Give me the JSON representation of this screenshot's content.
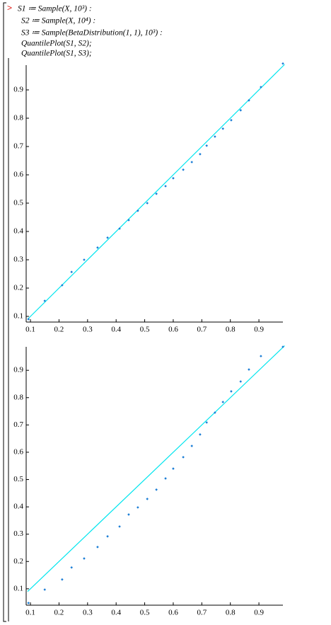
{
  "code": [
    "S1 ≔ Sample(X, 10³) :",
    "S2 ≔ Sample(X, 10⁴) :",
    "S3 ≔ Sample(BetaDistribution(1, 1), 10³) :",
    "QuantilePlot(S1, S2);",
    "QuantilePlot(S1, S3);"
  ],
  "prompt": ">",
  "chart_data": [
    {
      "type": "scatter",
      "xlim": [
        0.085,
        0.984
      ],
      "ylim": [
        0.08,
        0.9875
      ],
      "xticks": [
        0.1,
        0.2,
        0.3,
        0.4,
        0.5,
        0.6,
        0.7,
        0.8,
        0.9
      ],
      "yticks": [
        0.1,
        0.2,
        0.3,
        0.4,
        0.5,
        0.6,
        0.7,
        0.8,
        0.9
      ],
      "series": [
        {
          "mode": "line",
          "color": "#00e5ee",
          "x": [
            0.09,
            0.99
          ],
          "values": [
            0.09,
            0.99
          ]
        },
        {
          "mode": "points",
          "color": "#1c7ed6",
          "x": [
            0.093,
            0.15,
            0.211,
            0.244,
            0.288,
            0.335,
            0.37,
            0.412,
            0.444,
            0.476,
            0.509,
            0.541,
            0.573,
            0.6,
            0.635,
            0.665,
            0.694,
            0.717,
            0.746,
            0.774,
            0.803,
            0.836,
            0.865,
            0.907,
            0.984
          ],
          "values": [
            0.09,
            0.155,
            0.21,
            0.257,
            0.3,
            0.343,
            0.378,
            0.41,
            0.44,
            0.473,
            0.5,
            0.533,
            0.56,
            0.588,
            0.618,
            0.645,
            0.673,
            0.703,
            0.735,
            0.763,
            0.793,
            0.828,
            0.863,
            0.91,
            0.993
          ]
        }
      ]
    },
    {
      "type": "scatter",
      "xlim": [
        0.085,
        0.984
      ],
      "ylim": [
        0.04,
        0.986
      ],
      "xticks": [
        0.1,
        0.2,
        0.3,
        0.4,
        0.5,
        0.6,
        0.7,
        0.8,
        0.9
      ],
      "yticks": [
        0.1,
        0.2,
        0.3,
        0.4,
        0.5,
        0.6,
        0.7,
        0.8,
        0.9
      ],
      "series": [
        {
          "mode": "line",
          "color": "#00e5ee",
          "x": [
            0.09,
            0.99
          ],
          "values": [
            0.09,
            0.99
          ]
        },
        {
          "mode": "points",
          "color": "#1c7ed6",
          "x": [
            0.093,
            0.15,
            0.211,
            0.244,
            0.288,
            0.335,
            0.37,
            0.412,
            0.444,
            0.476,
            0.509,
            0.541,
            0.573,
            0.6,
            0.635,
            0.665,
            0.694,
            0.717,
            0.746,
            0.774,
            0.803,
            0.836,
            0.865,
            0.907,
            0.984
          ],
          "values": [
            0.048,
            0.097,
            0.134,
            0.178,
            0.211,
            0.253,
            0.292,
            0.328,
            0.372,
            0.398,
            0.429,
            0.463,
            0.504,
            0.54,
            0.582,
            0.623,
            0.665,
            0.709,
            0.745,
            0.784,
            0.823,
            0.859,
            0.903,
            0.952,
            0.986
          ]
        }
      ]
    }
  ]
}
